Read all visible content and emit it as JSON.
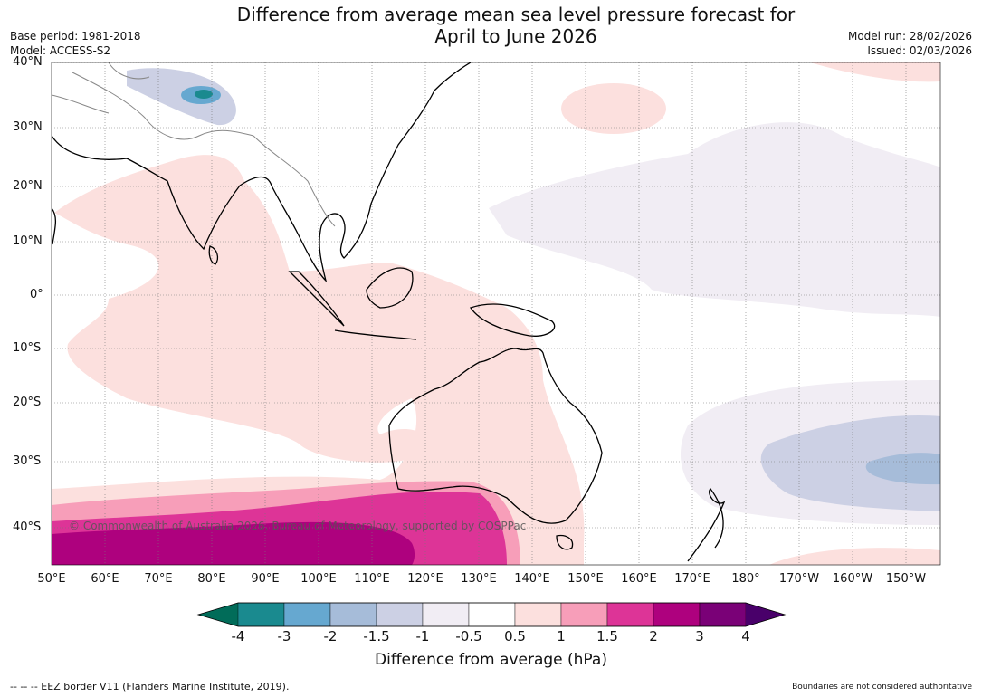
{
  "title_line1": "Difference from average mean sea level pressure forecast for",
  "title_line2": "April to June 2026",
  "base_period": "Base period: 1981-2018",
  "model": "Model: ACCESS-S2",
  "model_run": "Model run: 28/02/2026",
  "issued": "Issued: 02/03/2026",
  "lat_labels": [
    "40°N",
    "30°N",
    "20°N",
    "10°N",
    "0°",
    "10°S",
    "20°S",
    "30°S",
    "40°S"
  ],
  "lon_labels": [
    "50°E",
    "60°E",
    "70°E",
    "80°E",
    "90°E",
    "100°E",
    "110°E",
    "120°E",
    "130°E",
    "140°E",
    "150°E",
    "160°E",
    "170°E",
    "180°",
    "170°W",
    "160°W",
    "150°W"
  ],
  "copyright": "© Commonwealth of Australia 2026, Bureau of Meteorology, supported by COSPPac",
  "colorbar": {
    "ticks": [
      "-4",
      "-3",
      "-2",
      "-1.5",
      "-1",
      "-0.5",
      "0.5",
      "1",
      "1.5",
      "2",
      "3",
      "4"
    ],
    "colors": [
      "#1a8a8f",
      "#66a8d0",
      "#a6bcd9",
      "#ccd0e4",
      "#f1edf4",
      "#ffffff",
      "#fce0de",
      "#f79eb9",
      "#dd3497",
      "#ae017e",
      "#7a0177"
    ],
    "under_color": "#016c59",
    "over_color": "#49006a",
    "label": "Difference from average (hPa)"
  },
  "footer_left": "--  --  -- EEZ border V11 (Flanders Marine Institute, 2019).",
  "footer_right": "Boundaries are not considered authoritative"
}
